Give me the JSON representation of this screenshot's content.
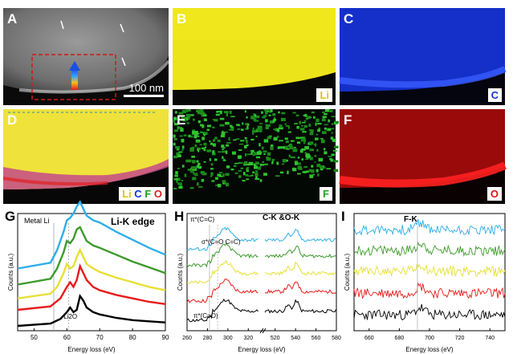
{
  "panels": {
    "A": {
      "label": "A",
      "scale_bar": "100 nm"
    },
    "B": {
      "label": "B",
      "element": "Li",
      "color": "#e9e20a"
    },
    "C": {
      "label": "C",
      "element": "C",
      "color": "#1233e0"
    },
    "D": {
      "label": "D",
      "overlay": [
        "Li",
        "C",
        "F",
        "O"
      ],
      "overlay_colors": [
        "#e0d800",
        "#1233e0",
        "#1aa81a",
        "#e02020"
      ]
    },
    "E": {
      "label": "E",
      "element": "F",
      "color": "#28b428"
    },
    "F": {
      "label": "F",
      "element": "O",
      "color": "#e01212"
    }
  },
  "series_colors": [
    "#000000",
    "#e81a1a",
    "#e6e034",
    "#3c9a2a",
    "#2eaee8"
  ],
  "chart_data": [
    {
      "type": "line",
      "panel": "G",
      "title": "Li-K edge",
      "annotations": [
        "Metal Li",
        "Li2O"
      ],
      "xlabel": "Energy loss (eV)",
      "ylabel": "Counts (a.u.)",
      "xlim": [
        45,
        90
      ],
      "xticks": [
        50,
        60,
        70,
        80,
        90
      ],
      "series": [
        {
          "offset": 0.0,
          "x": [
            45,
            55,
            58,
            60,
            61,
            62,
            63,
            64,
            65,
            66,
            68,
            70,
            75,
            80,
            85,
            90
          ],
          "y": [
            0,
            0.02,
            0.06,
            0.12,
            0.16,
            0.12,
            0.14,
            0.26,
            0.22,
            0.16,
            0.12,
            0.1,
            0.07,
            0.05,
            0.04,
            0.03
          ]
        },
        {
          "offset": 0.14,
          "x": [
            45,
            55,
            58,
            60,
            61,
            62,
            63,
            64,
            65,
            66,
            68,
            70,
            75,
            80,
            85,
            90
          ],
          "y": [
            0,
            0.03,
            0.1,
            0.2,
            0.24,
            0.2,
            0.26,
            0.38,
            0.32,
            0.26,
            0.2,
            0.17,
            0.13,
            0.1,
            0.07,
            0.05
          ]
        },
        {
          "offset": 0.24,
          "x": [
            45,
            55,
            57,
            59,
            60,
            61,
            62,
            63,
            64,
            65,
            66,
            68,
            70,
            75,
            80,
            85,
            90
          ],
          "y": [
            0,
            0.04,
            0.1,
            0.22,
            0.3,
            0.26,
            0.28,
            0.36,
            0.42,
            0.36,
            0.3,
            0.26,
            0.23,
            0.18,
            0.14,
            0.1,
            0.07
          ]
        },
        {
          "offset": 0.36,
          "x": [
            45,
            55,
            57,
            59,
            60,
            61,
            62,
            63,
            64,
            65,
            66,
            68,
            70,
            75,
            80,
            85,
            90
          ],
          "y": [
            0,
            0.05,
            0.14,
            0.28,
            0.38,
            0.36,
            0.4,
            0.48,
            0.5,
            0.44,
            0.38,
            0.34,
            0.32,
            0.26,
            0.2,
            0.15,
            0.1
          ]
        },
        {
          "offset": 0.5,
          "x": [
            45,
            55,
            57,
            59,
            60,
            61,
            62,
            63,
            64,
            65,
            66,
            68,
            70,
            75,
            80,
            85,
            90
          ],
          "y": [
            0,
            0.05,
            0.16,
            0.32,
            0.42,
            0.44,
            0.48,
            0.54,
            0.58,
            0.52,
            0.46,
            0.42,
            0.4,
            0.32,
            0.25,
            0.18,
            0.12
          ]
        }
      ]
    },
    {
      "type": "line",
      "panel": "H",
      "title": "C-K &O-K",
      "annotations": [
        "π*(C=C)",
        "σ*(C=O C=C)",
        "π*(C=O)"
      ],
      "xlabel": "Energy loss (eV)",
      "ylabel": "Counts (a.u.)",
      "xticks_left": [
        260,
        280,
        300,
        320
      ],
      "xticks_right": [
        520,
        540,
        560,
        580
      ],
      "xlim_left": [
        260,
        330
      ],
      "xlim_right": [
        510,
        580
      ],
      "series": [
        {
          "offset": 0.0
        },
        {
          "offset": 0.17
        },
        {
          "offset": 0.33
        },
        {
          "offset": 0.48
        },
        {
          "offset": 0.62
        }
      ]
    },
    {
      "type": "line",
      "panel": "I",
      "title": "F-K",
      "xlabel": "Energy loss (eV)",
      "ylabel": "Counts (a.u.)",
      "xlim": [
        650,
        750
      ],
      "xticks": [
        660,
        680,
        700,
        720,
        740
      ],
      "series": [
        {
          "offset": 0.0
        },
        {
          "offset": 0.19
        },
        {
          "offset": 0.38
        },
        {
          "offset": 0.56
        },
        {
          "offset": 0.74
        }
      ]
    }
  ]
}
